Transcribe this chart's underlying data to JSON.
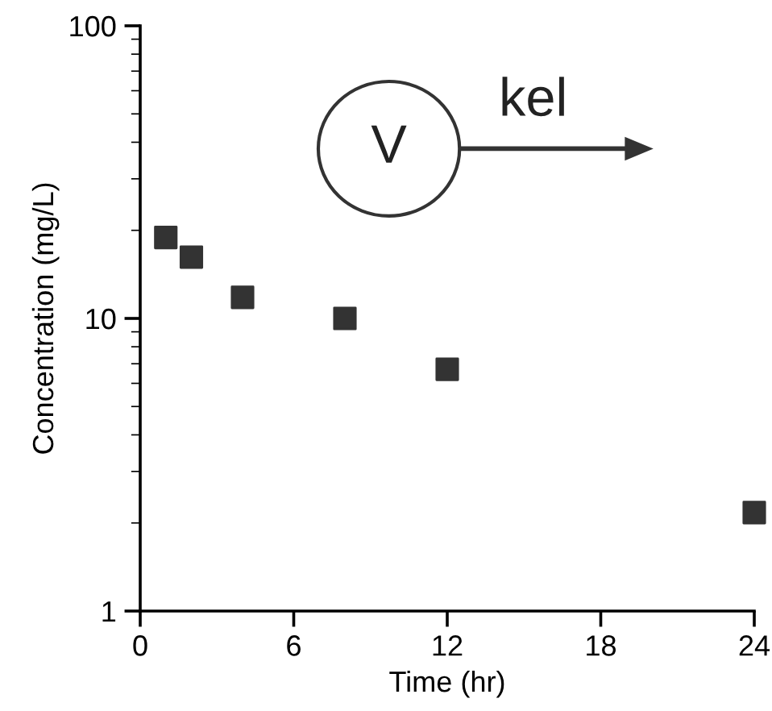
{
  "chart_data": {
    "type": "scatter",
    "xlabel": "Time (hr)",
    "ylabel": "Concentration (mg/L)",
    "x": [
      1,
      2,
      4,
      8,
      12,
      24
    ],
    "series": [
      {
        "color": "#333333",
        "values": [
          18.9,
          16.2,
          11.8,
          10.0,
          6.7,
          2.17
        ]
      }
    ],
    "log": "y",
    "xlim": [
      0,
      24
    ],
    "xticks": [
      0,
      6,
      12,
      18,
      24
    ],
    "ylim": [
      1,
      100
    ],
    "yticks": [
      1,
      10,
      100
    ],
    "marker": "square",
    "grid": false,
    "legend": false,
    "annotations": [
      "V",
      "kel"
    ]
  }
}
